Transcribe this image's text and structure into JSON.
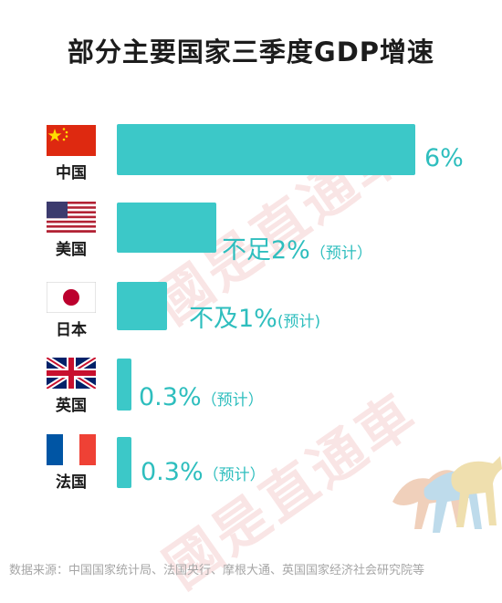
{
  "title": "部分主要国家三季度GDP增速",
  "watermark": "國是直通車",
  "source": "数据来源：中国国家统计局、法国央行、摩根大通、英国国家经济社会研究院等",
  "colors": {
    "bar": "#3cc8c8",
    "label": "#2ebebe",
    "watermark": "#d64646"
  },
  "chart_data": {
    "type": "bar",
    "orientation": "horizontal",
    "title": "部分主要国家三季度GDP增速",
    "xlabel": "",
    "ylabel": "",
    "grid": false,
    "categories": [
      "中国",
      "美国",
      "日本",
      "英国",
      "法国"
    ],
    "values": [
      6,
      2,
      1,
      0.3,
      0.3
    ],
    "labels": [
      {
        "main": "6%",
        "note": ""
      },
      {
        "main": "不足2%",
        "note": "（预计）"
      },
      {
        "main": "不及1%",
        "note": "(预计)"
      },
      {
        "main": "0.3%",
        "note": "（预计）"
      },
      {
        "main": "0.3%",
        "note": "（预计）"
      }
    ],
    "flags": [
      "china-flag",
      "usa-flag",
      "japan-flag",
      "uk-flag",
      "france-flag"
    ],
    "xlim": [
      0,
      6
    ]
  }
}
